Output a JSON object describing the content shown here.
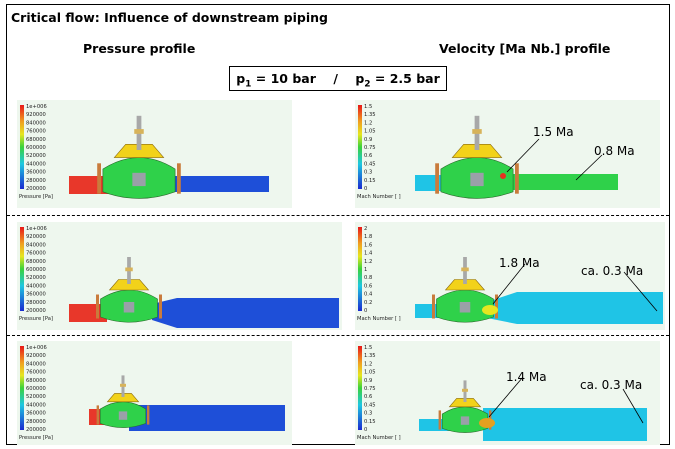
{
  "title": "Critical flow: Influence of downstream piping",
  "headers": {
    "pressure": "Pressure profile",
    "velocity": "Velocity [Ma Nb.] profile"
  },
  "equation": {
    "p1_sym": "p",
    "p1_sub": "1",
    "p1_val": " = 10 bar",
    "sep": "/",
    "p2_sym": "p",
    "p2_sub": "2",
    "p2_val": " = 2.5 bar"
  },
  "pressure_legend": {
    "ticks": [
      "1e+006",
      "920000",
      "840000",
      "760000",
      "680000",
      "600000",
      "520000",
      "440000",
      "360000",
      "280000",
      "200000"
    ],
    "label": "Pressure [Pa]"
  },
  "mach_legends": [
    {
      "ticks": [
        "1.5",
        "1.35",
        "1.2",
        "1.05",
        "0.9",
        "0.75",
        "0.6",
        "0.45",
        "0.3",
        "0.15",
        "0"
      ],
      "label": "Mach Number [ ]"
    },
    {
      "ticks": [
        "2",
        "1.8",
        "1.6",
        "1.4",
        "1.2",
        "1",
        "0.8",
        "0.6",
        "0.4",
        "0.2",
        "0"
      ],
      "label": "Mach Number [ ]"
    },
    {
      "ticks": [
        "1.5",
        "1.35",
        "1.2",
        "1.05",
        "0.9",
        "0.75",
        "0.6",
        "0.45",
        "0.3",
        "0.15",
        "0"
      ],
      "label": "Mach Number [ ]"
    }
  ],
  "annotations": {
    "row1": {
      "a": "1.5 Ma",
      "b": "0.8 Ma"
    },
    "row2": {
      "a": "1.8 Ma",
      "b": "ca. 0.3 Ma"
    },
    "row3": {
      "a": "1.4 Ma",
      "b": "ca. 0.3 Ma"
    }
  },
  "colors": {
    "high": "#e8372a",
    "mid": "#2fd14a",
    "low": "#1e4fd8",
    "yellow": "#f2d21a",
    "cyan": "#1fc4e6",
    "flange": "#c97b3c"
  }
}
